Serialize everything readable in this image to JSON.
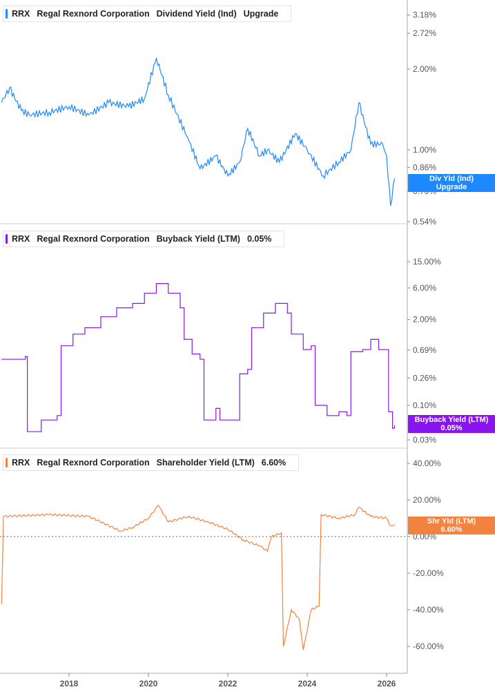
{
  "chart_data": [
    {
      "type": "line",
      "ticker": "RRX",
      "company": "Regal Rexnord Corporation",
      "metric": "Dividend Yield (Ind)",
      "value": "Upgrade",
      "color": "#1e88ff",
      "scale": "log",
      "tag": [
        "Div Yld (Ind)",
        "Upgrade"
      ],
      "yticks": [
        3.18,
        2.72,
        2.0,
        1.0,
        0.86,
        0.7,
        0.54
      ],
      "ytick_labels": [
        "3.18%",
        "2.72%",
        "2.00%",
        "1.00%",
        "0.86%",
        "0.70%",
        "0.54%"
      ],
      "x": [
        2016.3,
        2016.5,
        2016.8,
        2017,
        2017.5,
        2018,
        2018.5,
        2019,
        2019.5,
        2019.9,
        2020.2,
        2020.5,
        2021,
        2021.3,
        2021.7,
        2022,
        2022.3,
        2022.5,
        2022.8,
        2023,
        2023.3,
        2023.7,
        2024,
        2024.4,
        2024.8,
        2025.1,
        2025.3,
        2025.6,
        2025.9,
        2026.0,
        2026.1,
        2026.2
      ],
      "y": [
        1.5,
        1.7,
        1.4,
        1.35,
        1.38,
        1.45,
        1.35,
        1.5,
        1.45,
        1.55,
        2.2,
        1.6,
        1.1,
        0.85,
        0.95,
        0.8,
        0.9,
        1.2,
        0.95,
        1.0,
        0.9,
        1.15,
        1.0,
        0.8,
        0.9,
        1.0,
        1.5,
        1.05,
        1.05,
        0.95,
        0.62,
        0.78
      ]
    },
    {
      "type": "line",
      "ticker": "RRX",
      "company": "Regal Rexnord Corporation",
      "metric": "Buyback Yield (LTM)",
      "value": "0.05%",
      "color": "#8a14f0",
      "scale": "log",
      "step": true,
      "tag": [
        "Buyback Yield (LTM)",
        "0.05%"
      ],
      "yticks": [
        15,
        6,
        2,
        0.69,
        0.26,
        0.1,
        0.03
      ],
      "ytick_labels": [
        "15.00%",
        "6.00%",
        "2.00%",
        "0.69%",
        "0.26%",
        "0.10%",
        "0.03%"
      ],
      "x": [
        2016.3,
        2016.9,
        2016.95,
        2017.3,
        2017.7,
        2017.8,
        2018.1,
        2018.4,
        2018.8,
        2019.2,
        2019.6,
        2019.9,
        2020.2,
        2020.5,
        2020.8,
        2020.9,
        2021.1,
        2021.3,
        2021.4,
        2021.7,
        2021.8,
        2022.2,
        2022.3,
        2022.5,
        2022.6,
        2022.9,
        2023.2,
        2023.5,
        2023.6,
        2023.9,
        2024.1,
        2024.2,
        2024.5,
        2024.8,
        2025.0,
        2025.1,
        2025.4,
        2025.6,
        2025.8,
        2026.0,
        2026.05,
        2026.15,
        2026.2
      ],
      "y": [
        0.5,
        0.55,
        0.04,
        0.06,
        0.07,
        0.8,
        1.2,
        1.5,
        2.2,
        3,
        3.5,
        5,
        7,
        5,
        3,
        1,
        0.6,
        0.5,
        0.06,
        0.09,
        0.06,
        0.06,
        0.3,
        0.35,
        1.5,
        2.5,
        3.5,
        2.5,
        1.2,
        0.7,
        0.8,
        0.1,
        0.07,
        0.08,
        0.07,
        0.65,
        0.7,
        1,
        0.7,
        0.7,
        0.08,
        0.045,
        0.05
      ]
    },
    {
      "type": "line",
      "ticker": "RRX",
      "company": "Regal Rexnord Corporation",
      "metric": "Shareholder Yield (LTM)",
      "value": "6.60%",
      "color": "#f4823f",
      "scale": "linear",
      "zero_line": true,
      "tag": [
        "Shr Yld (LTM)",
        "6.60%"
      ],
      "yticks": [
        40,
        20,
        0,
        -20,
        -40,
        -60
      ],
      "ytick_labels": [
        "40.00%",
        "20.00%",
        "0.00%",
        "-20.00%",
        "-40.00%",
        "-60.00%"
      ],
      "x": [
        2016.3,
        2016.35,
        2017.5,
        2018.5,
        2019.3,
        2019.6,
        2020,
        2020.25,
        2020.5,
        2021,
        2021.5,
        2022,
        2022.4,
        2022.8,
        2023,
        2023.1,
        2023.35,
        2023.4,
        2023.6,
        2023.8,
        2023.9,
        2024.1,
        2024.3,
        2024.35,
        2024.8,
        2025.2,
        2025.3,
        2025.6,
        2026.0,
        2026.1,
        2026.2
      ],
      "y": [
        -37,
        11,
        12,
        11,
        3,
        5,
        10,
        17,
        8,
        11,
        8,
        4,
        -2,
        -5,
        -8,
        0,
        2,
        -60,
        -40,
        -45,
        -62,
        -40,
        -38,
        12,
        10,
        12,
        16,
        11,
        10,
        6,
        6.6
      ]
    }
  ],
  "xaxis": {
    "ticks": [
      2018,
      2020,
      2022,
      2024,
      2026
    ],
    "labels": [
      "2018",
      "2020",
      "2022",
      "2024",
      "2026"
    ]
  }
}
